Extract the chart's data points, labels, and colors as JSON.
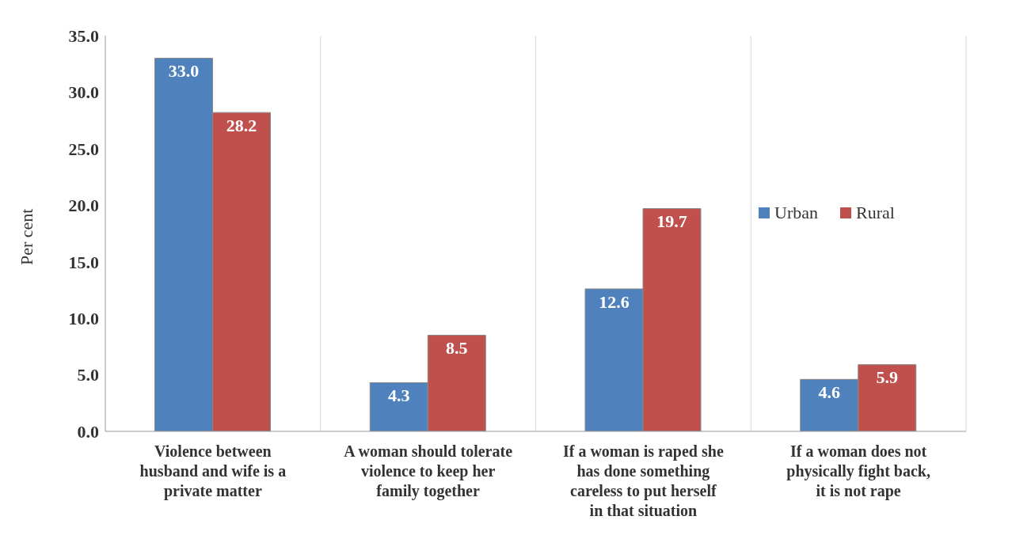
{
  "chart_data": {
    "type": "bar",
    "ylabel": "Per cent",
    "categories": [
      "Violence between husband and wife is a private matter",
      "A woman should tolerate violence to keep her family together",
      "If a woman is raped she has done something careless to put herself in that situation",
      "If a woman does not physically fight back, it is not rape"
    ],
    "series": [
      {
        "name": "Urban",
        "color": "#4f81bd",
        "values": [
          33.0,
          4.3,
          12.6,
          4.6
        ],
        "value_labels": [
          "33.0",
          "4.3",
          "12.6",
          "4.6"
        ]
      },
      {
        "name": "Rural",
        "color": "#c0504d",
        "values": [
          28.2,
          8.5,
          19.7,
          5.9
        ],
        "value_labels": [
          "28.2",
          "8.5",
          "19.7",
          "5.9"
        ]
      }
    ],
    "ylim": [
      0,
      35
    ],
    "yticks": [
      {
        "value": 0,
        "label": "0.0"
      },
      {
        "value": 5,
        "label": "5.0"
      },
      {
        "value": 10,
        "label": "10.0"
      },
      {
        "value": 15,
        "label": "15.0"
      },
      {
        "value": 20,
        "label": "20.0"
      },
      {
        "value": 25,
        "label": "25.0"
      },
      {
        "value": 30,
        "label": "30.0"
      },
      {
        "value": 35,
        "label": "35.0"
      }
    ],
    "grid": "x",
    "legend": "right"
  }
}
